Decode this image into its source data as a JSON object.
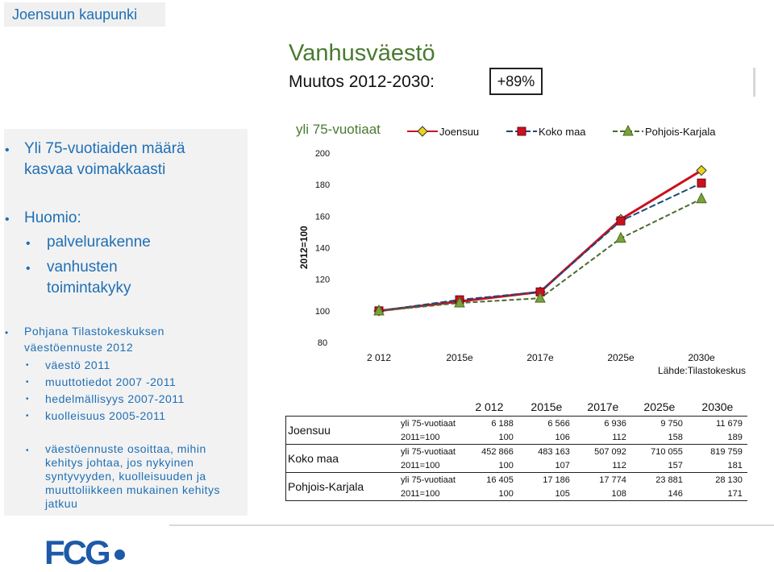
{
  "header": {
    "org": "Joensuun kaupunki",
    "title": "Vanhusväestö",
    "subtitle": "Muutos 2012-2030:",
    "badge": "+89%"
  },
  "sidebar": {
    "bullet1": [
      "Yli 75-vuotiaiden määrä",
      "kasvaa voimakkaasti"
    ],
    "bullet2": "Huomio:",
    "sub2": [
      "palvelurakenne",
      "vanhusten",
      "toimintakyky"
    ],
    "bullet3": [
      "Pohjana Tilastokeskuksen",
      "väestöennuste 2012"
    ],
    "sub3": [
      "väestö 2011",
      "muuttotiedot 2007 -2011",
      "hedelmällisyys 2007-2011",
      "kuolleisuus 2005-2011"
    ],
    "bullet4": [
      "väestöennuste osoittaa, mihin",
      "kehitys johtaa, jos nykyinen",
      "syntyvyyden, kuolleisuuden ja",
      "muuttoliikkeen mukainen kehitys",
      "jatkuu"
    ]
  },
  "chart_data": {
    "type": "line",
    "title": "yli 75-vuotiaat",
    "ylabel": "2012=100",
    "categories": [
      "2 012",
      "2015e",
      "2017e",
      "2025e",
      "2030e"
    ],
    "ylim": [
      80,
      200
    ],
    "yticks": [
      "80",
      "100",
      "120",
      "140",
      "160",
      "180",
      "200"
    ],
    "source": "Lähde:Tilastokeskus",
    "legend_position": "top",
    "series": [
      {
        "name": "Joensuu",
        "values": [
          100,
          106,
          112,
          158,
          189
        ],
        "color": "#e8d41a",
        "marker": "diamond"
      },
      {
        "name": "Koko maa",
        "values": [
          100,
          107,
          112,
          157,
          181
        ],
        "color": "#cc1020",
        "marker": "square"
      },
      {
        "name": "Pohjois-Karjala",
        "values": [
          100,
          105,
          108,
          146,
          171
        ],
        "color": "#7aa33a",
        "marker": "triangle"
      }
    ]
  },
  "table": {
    "headers": [
      "2 012",
      "2015e",
      "2017e",
      "2025e",
      "2030e"
    ],
    "groups": [
      {
        "region": "Joensuu",
        "rows": [
          {
            "label": "yli 75-vuotiaat",
            "values": [
              "6 188",
              "6 566",
              "6 936",
              "9 750",
              "11 679"
            ]
          },
          {
            "label": "2011=100",
            "values": [
              "100",
              "106",
              "112",
              "158",
              "189"
            ]
          }
        ]
      },
      {
        "region": "Koko maa",
        "rows": [
          {
            "label": "yli 75-vuotiaat",
            "values": [
              "452 866",
              "483 163",
              "507 092",
              "710 055",
              "819 759"
            ]
          },
          {
            "label": "2011=100",
            "values": [
              "100",
              "107",
              "112",
              "157",
              "181"
            ]
          }
        ]
      },
      {
        "region": "Pohjois-Karjala",
        "rows": [
          {
            "label": "yli 75-vuotiaat",
            "values": [
              "16 405",
              "17 186",
              "17 774",
              "23 881",
              "28 130"
            ]
          },
          {
            "label": "2011=100",
            "values": [
              "100",
              "105",
              "108",
              "146",
              "171"
            ]
          }
        ]
      }
    ]
  },
  "footer": {
    "logo": "FCG"
  }
}
